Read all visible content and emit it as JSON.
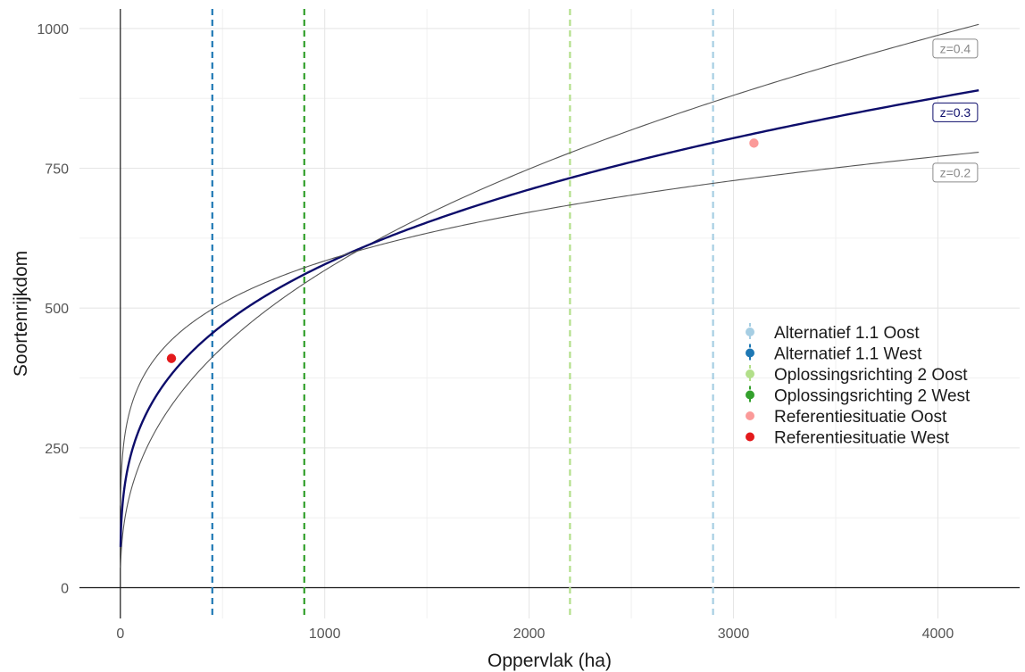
{
  "chart_data": {
    "type": "line",
    "xlabel": "Oppervlak (ha)",
    "ylabel": "Soortenrijkdom",
    "xlim": [
      -200,
      4400
    ],
    "ylim": [
      -55,
      1035
    ],
    "x_ticks": [
      0,
      1000,
      2000,
      3000,
      4000
    ],
    "x_tick_labels": [
      "0",
      "1000",
      "2000",
      "3000",
      "4000"
    ],
    "y_ticks": [
      0,
      250,
      500,
      750,
      1000
    ],
    "y_tick_labels": [
      "0",
      "250",
      "500",
      "750",
      "1000"
    ],
    "grid": true,
    "legend_position": "right",
    "curves": [
      {
        "label": "z=0.4",
        "z": 0.4,
        "c": 35.8,
        "color": "#555555",
        "highlight": false,
        "x_max": 4200
      },
      {
        "label": "z=0.3",
        "z": 0.3,
        "c": 72.8,
        "color": "#0d0d6b",
        "highlight": true,
        "x_max": 4200
      },
      {
        "label": "z=0.2",
        "z": 0.2,
        "c": 146.8,
        "color": "#555555",
        "highlight": false,
        "x_max": 4200
      }
    ],
    "series": [
      {
        "name": "Alternatief 1.1 Oost",
        "color": "#a6cee3",
        "kind": "vline",
        "x": 2900
      },
      {
        "name": "Alternatief 1.1 West",
        "color": "#1f78b4",
        "kind": "vline",
        "x": 450
      },
      {
        "name": "Oplossingsrichting 2 Oost",
        "color": "#b2df8a",
        "kind": "vline",
        "x": 2200
      },
      {
        "name": "Oplossingsrichting 2 West",
        "color": "#33a02c",
        "kind": "vline",
        "x": 900
      },
      {
        "name": "Referentiesituatie Oost",
        "color": "#fb9a99",
        "kind": "point",
        "x": 3100,
        "y": 795
      },
      {
        "name": "Referentiesituatie West",
        "color": "#e31a1c",
        "kind": "point",
        "x": 250,
        "y": 410
      }
    ]
  }
}
